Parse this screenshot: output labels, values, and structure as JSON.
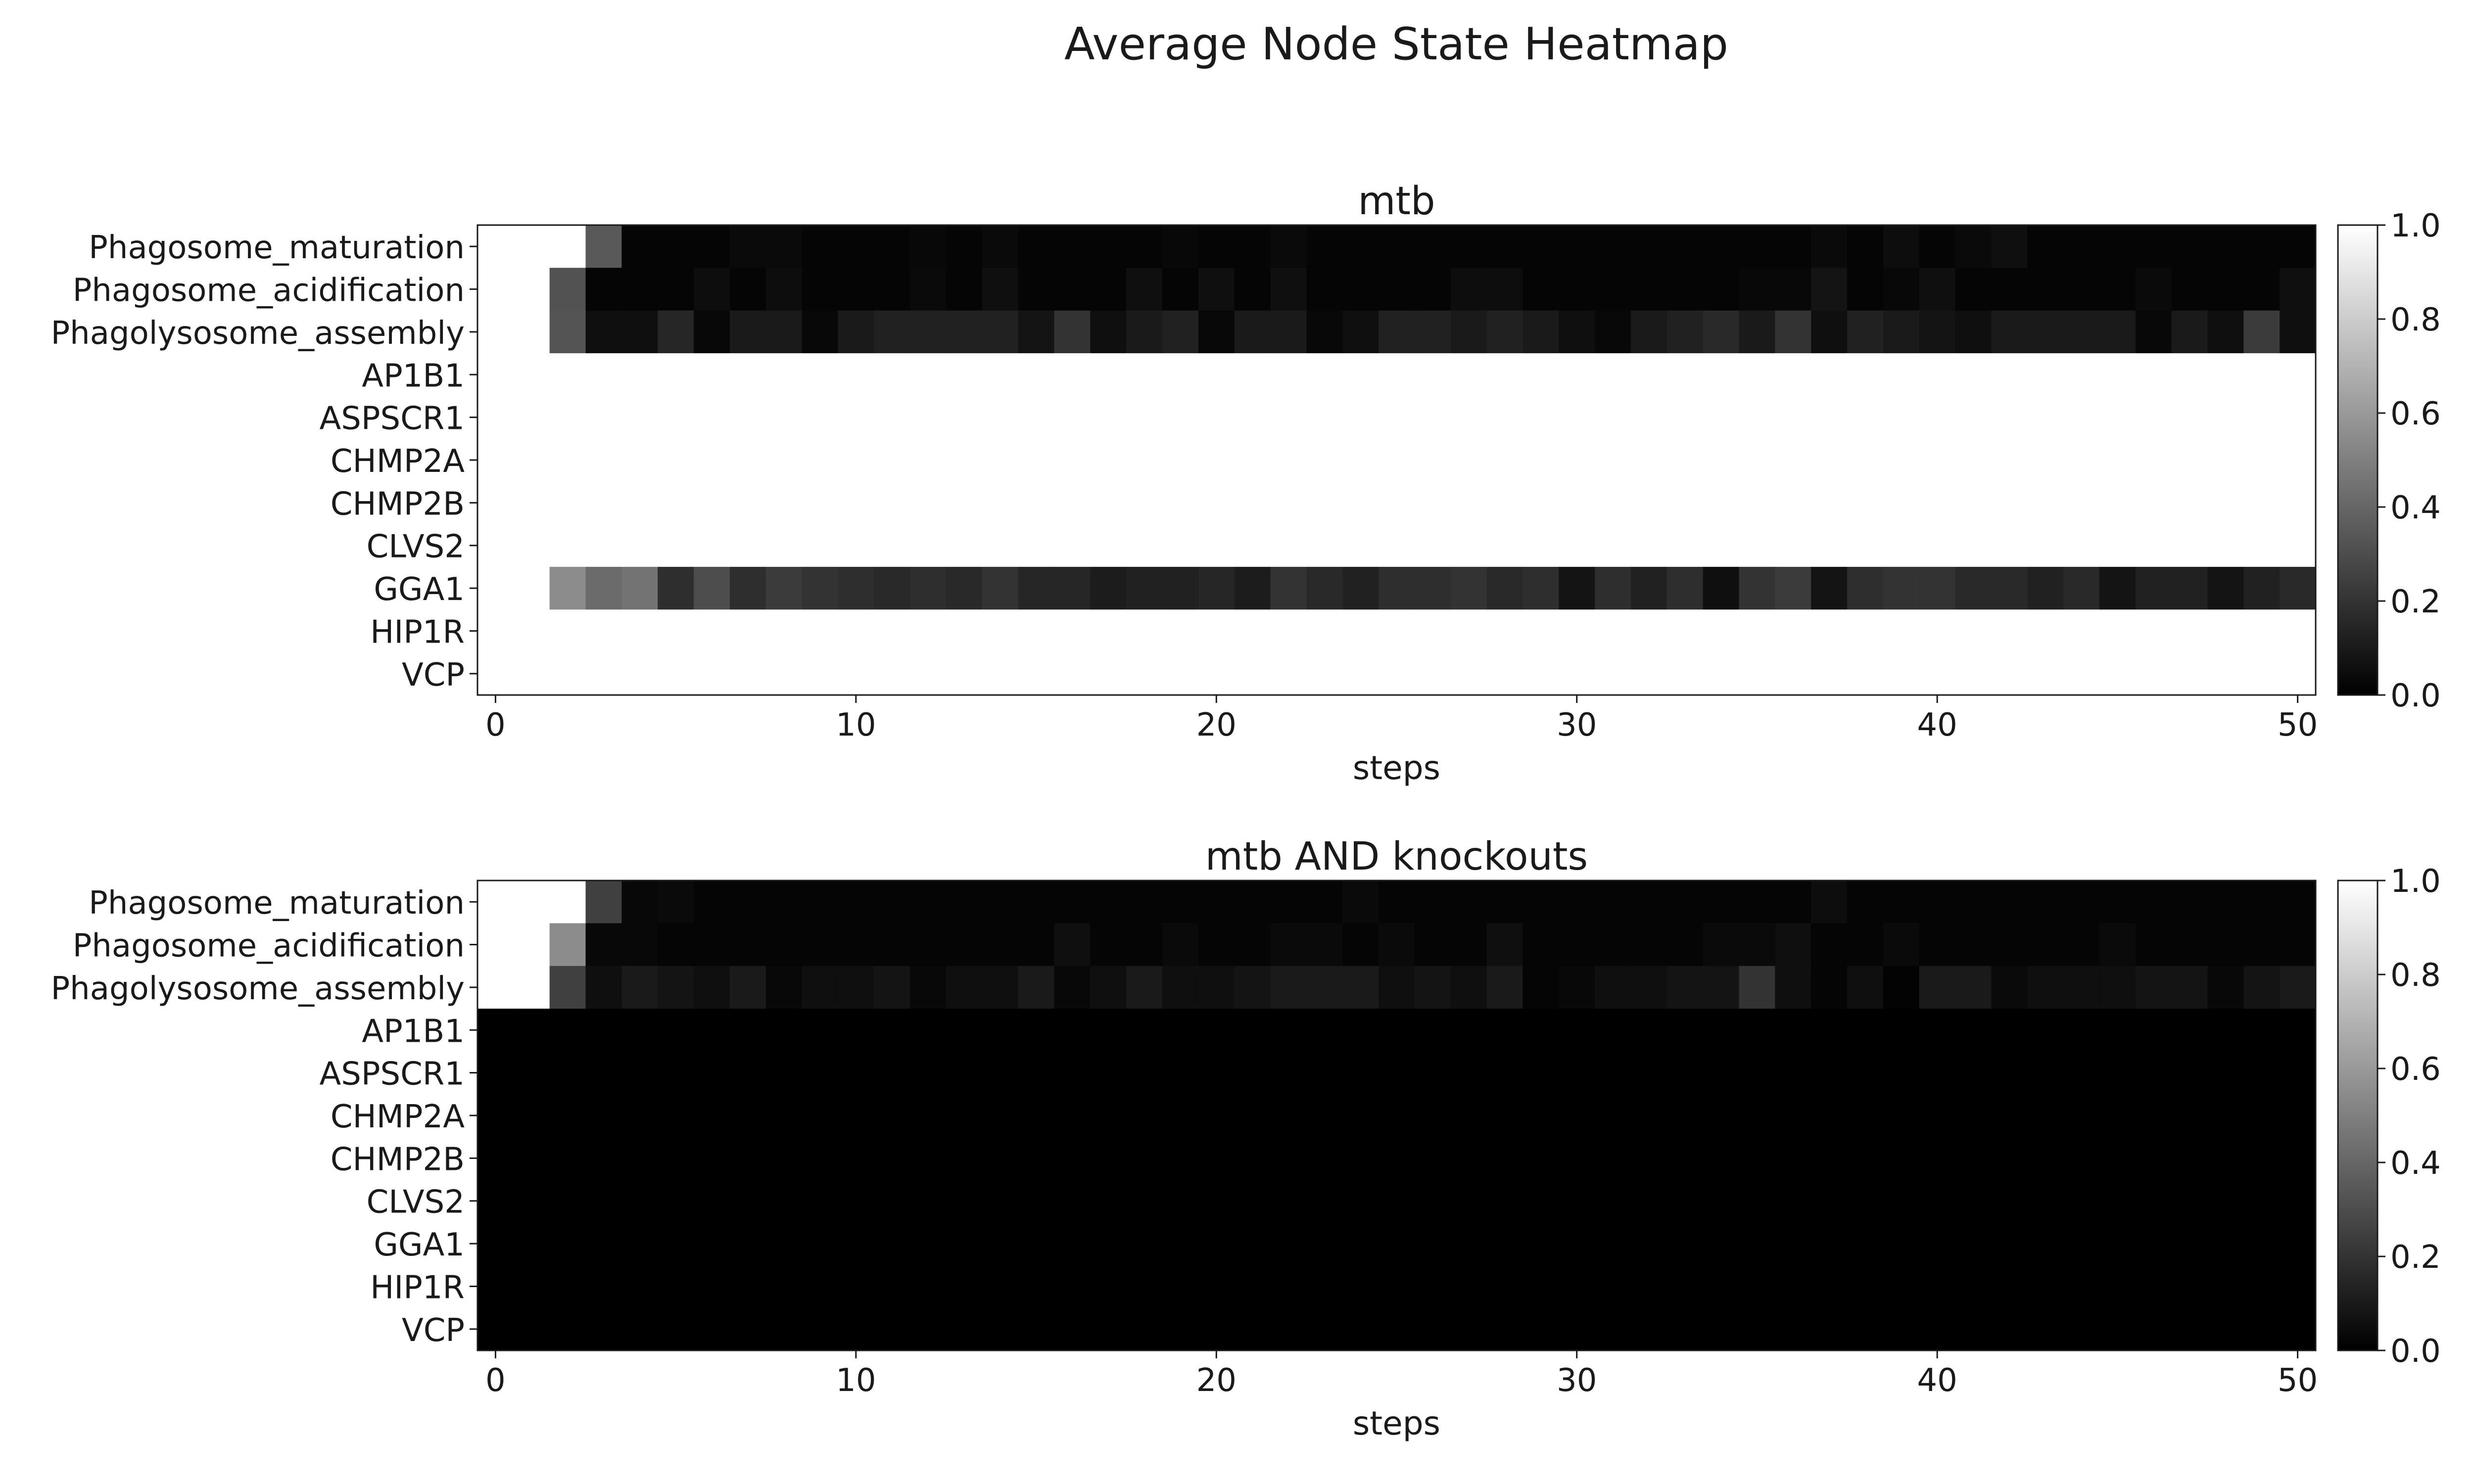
{
  "figure": {
    "title": "Average Node State Heatmap"
  },
  "chart_data": [
    {
      "type": "heatmap",
      "title": "mtb",
      "xlabel": "steps",
      "ylabel": "",
      "xlim": [
        0,
        50
      ],
      "x_ticks": [
        0,
        10,
        20,
        30,
        40,
        50
      ],
      "rows": [
        "Phagosome_maturation",
        "Phagosome_acidification",
        "Phagolysosome_assembly",
        "AP1B1",
        "ASPSCR1",
        "CHMP2A",
        "CHMP2B",
        "CLVS2",
        "GGA1",
        "HIP1R",
        "VCP"
      ],
      "colorbar": {
        "range": [
          0,
          1
        ],
        "ticks": [
          0.0,
          0.2,
          0.4,
          0.6,
          0.8,
          1.0
        ],
        "colormap": "gray"
      },
      "values": [
        [
          1,
          1,
          1,
          0.35,
          0.02,
          0.02,
          0.02,
          0.04,
          0.04,
          0.02,
          0.02,
          0.02,
          0.03,
          0.02,
          0.04,
          0.02,
          0.02,
          0.02,
          0.02,
          0.03,
          0.02,
          0.02,
          0.04,
          0.02,
          0.02,
          0.02,
          0.02,
          0.02,
          0.02,
          0.02,
          0.02,
          0.02,
          0.02,
          0.02,
          0.02,
          0.02,
          0.02,
          0.04,
          0.02,
          0.05,
          0.02,
          0.04,
          0.06,
          0.02,
          0.02,
          0.02,
          0.02,
          0.02,
          0.02,
          0.02,
          0.02
        ],
        [
          1,
          1,
          0.32,
          0.02,
          0.02,
          0.02,
          0.05,
          0.02,
          0.05,
          0.02,
          0.02,
          0.02,
          0.04,
          0.02,
          0.06,
          0.02,
          0.02,
          0.02,
          0.06,
          0.02,
          0.06,
          0.02,
          0.06,
          0.02,
          0.02,
          0.02,
          0.02,
          0.05,
          0.05,
          0.02,
          0.02,
          0.02,
          0.02,
          0.02,
          0.02,
          0.03,
          0.03,
          0.08,
          0.02,
          0.03,
          0.06,
          0.02,
          0.02,
          0.02,
          0.02,
          0.02,
          0.04,
          0.02,
          0.02,
          0.02,
          0.06
        ],
        [
          1,
          1,
          0.33,
          0.06,
          0.06,
          0.15,
          0.03,
          0.1,
          0.1,
          0.03,
          0.1,
          0.13,
          0.13,
          0.13,
          0.13,
          0.08,
          0.2,
          0.06,
          0.1,
          0.13,
          0.03,
          0.1,
          0.1,
          0.03,
          0.06,
          0.13,
          0.13,
          0.1,
          0.13,
          0.1,
          0.06,
          0.03,
          0.1,
          0.13,
          0.16,
          0.1,
          0.2,
          0.06,
          0.13,
          0.1,
          0.08,
          0.06,
          0.1,
          0.1,
          0.1,
          0.1,
          0.03,
          0.1,
          0.06,
          0.23,
          0.06
        ],
        [
          1,
          1,
          1,
          1,
          1,
          1,
          1,
          1,
          1,
          1,
          1,
          1,
          1,
          1,
          1,
          1,
          1,
          1,
          1,
          1,
          1,
          1,
          1,
          1,
          1,
          1,
          1,
          1,
          1,
          1,
          1,
          1,
          1,
          1,
          1,
          1,
          1,
          1,
          1,
          1,
          1,
          1,
          1,
          1,
          1,
          1,
          1,
          1,
          1,
          1,
          1
        ],
        [
          1,
          1,
          1,
          1,
          1,
          1,
          1,
          1,
          1,
          1,
          1,
          1,
          1,
          1,
          1,
          1,
          1,
          1,
          1,
          1,
          1,
          1,
          1,
          1,
          1,
          1,
          1,
          1,
          1,
          1,
          1,
          1,
          1,
          1,
          1,
          1,
          1,
          1,
          1,
          1,
          1,
          1,
          1,
          1,
          1,
          1,
          1,
          1,
          1,
          1,
          1
        ],
        [
          1,
          1,
          1,
          1,
          1,
          1,
          1,
          1,
          1,
          1,
          1,
          1,
          1,
          1,
          1,
          1,
          1,
          1,
          1,
          1,
          1,
          1,
          1,
          1,
          1,
          1,
          1,
          1,
          1,
          1,
          1,
          1,
          1,
          1,
          1,
          1,
          1,
          1,
          1,
          1,
          1,
          1,
          1,
          1,
          1,
          1,
          1,
          1,
          1,
          1,
          1
        ],
        [
          1,
          1,
          1,
          1,
          1,
          1,
          1,
          1,
          1,
          1,
          1,
          1,
          1,
          1,
          1,
          1,
          1,
          1,
          1,
          1,
          1,
          1,
          1,
          1,
          1,
          1,
          1,
          1,
          1,
          1,
          1,
          1,
          1,
          1,
          1,
          1,
          1,
          1,
          1,
          1,
          1,
          1,
          1,
          1,
          1,
          1,
          1,
          1,
          1,
          1,
          1
        ],
        [
          1,
          1,
          1,
          1,
          1,
          1,
          1,
          1,
          1,
          1,
          1,
          1,
          1,
          1,
          1,
          1,
          1,
          1,
          1,
          1,
          1,
          1,
          1,
          1,
          1,
          1,
          1,
          1,
          1,
          1,
          1,
          1,
          1,
          1,
          1,
          1,
          1,
          1,
          1,
          1,
          1,
          1,
          1,
          1,
          1,
          1,
          1,
          1,
          1,
          1,
          1
        ],
        [
          1,
          1,
          0.55,
          0.42,
          0.45,
          0.18,
          0.3,
          0.18,
          0.23,
          0.2,
          0.18,
          0.16,
          0.18,
          0.16,
          0.2,
          0.15,
          0.15,
          0.11,
          0.13,
          0.13,
          0.15,
          0.11,
          0.2,
          0.16,
          0.13,
          0.18,
          0.18,
          0.2,
          0.16,
          0.18,
          0.08,
          0.18,
          0.13,
          0.18,
          0.06,
          0.2,
          0.23,
          0.08,
          0.18,
          0.2,
          0.2,
          0.16,
          0.16,
          0.13,
          0.16,
          0.08,
          0.13,
          0.13,
          0.08,
          0.13,
          0.16
        ],
        [
          1,
          1,
          1,
          1,
          1,
          1,
          1,
          1,
          1,
          1,
          1,
          1,
          1,
          1,
          1,
          1,
          1,
          1,
          1,
          1,
          1,
          1,
          1,
          1,
          1,
          1,
          1,
          1,
          1,
          1,
          1,
          1,
          1,
          1,
          1,
          1,
          1,
          1,
          1,
          1,
          1,
          1,
          1,
          1,
          1,
          1,
          1,
          1,
          1,
          1,
          1
        ],
        [
          1,
          1,
          1,
          1,
          1,
          1,
          1,
          1,
          1,
          1,
          1,
          1,
          1,
          1,
          1,
          1,
          1,
          1,
          1,
          1,
          1,
          1,
          1,
          1,
          1,
          1,
          1,
          1,
          1,
          1,
          1,
          1,
          1,
          1,
          1,
          1,
          1,
          1,
          1,
          1,
          1,
          1,
          1,
          1,
          1,
          1,
          1,
          1,
          1,
          1,
          1
        ]
      ]
    },
    {
      "type": "heatmap",
      "title": "mtb AND knockouts",
      "xlabel": "steps",
      "ylabel": "",
      "xlim": [
        0,
        50
      ],
      "x_ticks": [
        0,
        10,
        20,
        30,
        40,
        50
      ],
      "rows": [
        "Phagosome_maturation",
        "Phagosome_acidification",
        "Phagolysosome_assembly",
        "AP1B1",
        "ASPSCR1",
        "CHMP2A",
        "CHMP2B",
        "CLVS2",
        "GGA1",
        "HIP1R",
        "VCP"
      ],
      "colorbar": {
        "range": [
          0,
          1
        ],
        "ticks": [
          0.0,
          0.2,
          0.4,
          0.6,
          0.8,
          1.0
        ],
        "colormap": "gray"
      },
      "values": [
        [
          1,
          1,
          1,
          0.25,
          0.03,
          0.04,
          0.02,
          0.02,
          0.02,
          0.02,
          0.02,
          0.02,
          0.02,
          0.02,
          0.02,
          0.02,
          0.02,
          0.02,
          0.02,
          0.02,
          0.02,
          0.02,
          0.02,
          0.02,
          0.04,
          0.02,
          0.02,
          0.02,
          0.02,
          0.02,
          0.02,
          0.02,
          0.02,
          0.02,
          0.02,
          0.02,
          0.02,
          0.05,
          0.02,
          0.02,
          0.02,
          0.02,
          0.02,
          0.02,
          0.02,
          0.02,
          0.02,
          0.02,
          0.02,
          0.02,
          0.02
        ],
        [
          1,
          1,
          0.55,
          0.03,
          0.03,
          0.02,
          0.02,
          0.02,
          0.02,
          0.02,
          0.02,
          0.02,
          0.02,
          0.02,
          0.02,
          0.02,
          0.06,
          0.02,
          0.02,
          0.04,
          0.02,
          0.02,
          0.04,
          0.04,
          0.02,
          0.04,
          0.02,
          0.02,
          0.06,
          0.02,
          0.02,
          0.02,
          0.02,
          0.02,
          0.04,
          0.04,
          0.06,
          0.02,
          0.02,
          0.04,
          0.02,
          0.02,
          0.02,
          0.02,
          0.02,
          0.04,
          0.02,
          0.02,
          0.02,
          0.02,
          0.02
        ],
        [
          1,
          1,
          0.25,
          0.06,
          0.1,
          0.08,
          0.06,
          0.1,
          0.03,
          0.06,
          0.06,
          0.08,
          0.03,
          0.06,
          0.06,
          0.1,
          0.03,
          0.06,
          0.1,
          0.06,
          0.06,
          0.08,
          0.1,
          0.1,
          0.1,
          0.06,
          0.08,
          0.06,
          0.1,
          0.02,
          0.03,
          0.06,
          0.06,
          0.08,
          0.08,
          0.2,
          0.06,
          0.02,
          0.06,
          0.01,
          0.1,
          0.1,
          0.04,
          0.06,
          0.06,
          0.06,
          0.08,
          0.08,
          0.03,
          0.08,
          0.1
        ],
        [
          0,
          0,
          0,
          0,
          0,
          0,
          0,
          0,
          0,
          0,
          0,
          0,
          0,
          0,
          0,
          0,
          0,
          0,
          0,
          0,
          0,
          0,
          0,
          0,
          0,
          0,
          0,
          0,
          0,
          0,
          0,
          0,
          0,
          0,
          0,
          0,
          0,
          0,
          0,
          0,
          0,
          0,
          0,
          0,
          0,
          0,
          0,
          0,
          0,
          0,
          0
        ],
        [
          0,
          0,
          0,
          0,
          0,
          0,
          0,
          0,
          0,
          0,
          0,
          0,
          0,
          0,
          0,
          0,
          0,
          0,
          0,
          0,
          0,
          0,
          0,
          0,
          0,
          0,
          0,
          0,
          0,
          0,
          0,
          0,
          0,
          0,
          0,
          0,
          0,
          0,
          0,
          0,
          0,
          0,
          0,
          0,
          0,
          0,
          0,
          0,
          0,
          0,
          0
        ],
        [
          0,
          0,
          0,
          0,
          0,
          0,
          0,
          0,
          0,
          0,
          0,
          0,
          0,
          0,
          0,
          0,
          0,
          0,
          0,
          0,
          0,
          0,
          0,
          0,
          0,
          0,
          0,
          0,
          0,
          0,
          0,
          0,
          0,
          0,
          0,
          0,
          0,
          0,
          0,
          0,
          0,
          0,
          0,
          0,
          0,
          0,
          0,
          0,
          0,
          0,
          0
        ],
        [
          0,
          0,
          0,
          0,
          0,
          0,
          0,
          0,
          0,
          0,
          0,
          0,
          0,
          0,
          0,
          0,
          0,
          0,
          0,
          0,
          0,
          0,
          0,
          0,
          0,
          0,
          0,
          0,
          0,
          0,
          0,
          0,
          0,
          0,
          0,
          0,
          0,
          0,
          0,
          0,
          0,
          0,
          0,
          0,
          0,
          0,
          0,
          0,
          0,
          0,
          0
        ],
        [
          0,
          0,
          0,
          0,
          0,
          0,
          0,
          0,
          0,
          0,
          0,
          0,
          0,
          0,
          0,
          0,
          0,
          0,
          0,
          0,
          0,
          0,
          0,
          0,
          0,
          0,
          0,
          0,
          0,
          0,
          0,
          0,
          0,
          0,
          0,
          0,
          0,
          0,
          0,
          0,
          0,
          0,
          0,
          0,
          0,
          0,
          0,
          0,
          0,
          0,
          0
        ],
        [
          0,
          0,
          0,
          0,
          0,
          0,
          0,
          0,
          0,
          0,
          0,
          0,
          0,
          0,
          0,
          0,
          0,
          0,
          0,
          0,
          0,
          0,
          0,
          0,
          0,
          0,
          0,
          0,
          0,
          0,
          0,
          0,
          0,
          0,
          0,
          0,
          0,
          0,
          0,
          0,
          0,
          0,
          0,
          0,
          0,
          0,
          0,
          0,
          0,
          0,
          0
        ],
        [
          0,
          0,
          0,
          0,
          0,
          0,
          0,
          0,
          0,
          0,
          0,
          0,
          0,
          0,
          0,
          0,
          0,
          0,
          0,
          0,
          0,
          0,
          0,
          0,
          0,
          0,
          0,
          0,
          0,
          0,
          0,
          0,
          0,
          0,
          0,
          0,
          0,
          0,
          0,
          0,
          0,
          0,
          0,
          0,
          0,
          0,
          0,
          0,
          0,
          0,
          0
        ],
        [
          0,
          0,
          0,
          0,
          0,
          0,
          0,
          0,
          0,
          0,
          0,
          0,
          0,
          0,
          0,
          0,
          0,
          0,
          0,
          0,
          0,
          0,
          0,
          0,
          0,
          0,
          0,
          0,
          0,
          0,
          0,
          0,
          0,
          0,
          0,
          0,
          0,
          0,
          0,
          0,
          0,
          0,
          0,
          0,
          0,
          0,
          0,
          0,
          0,
          0,
          0
        ]
      ]
    }
  ]
}
